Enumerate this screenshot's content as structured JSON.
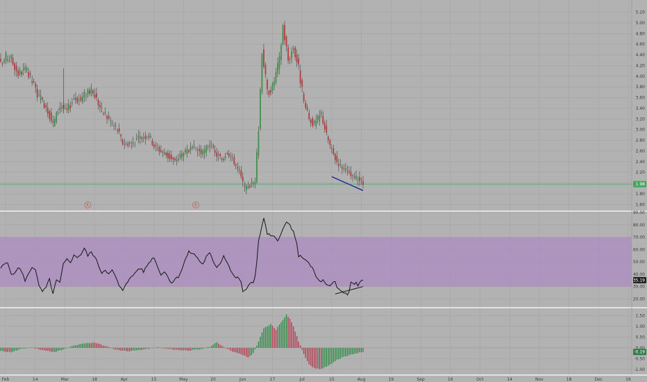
{
  "chart_data": [
    {
      "type": "candlestick",
      "title": "",
      "ylim": [
        1.5,
        5.35
      ],
      "yticks": [
        "5.20",
        "5.00",
        "4.80",
        "4.60",
        "4.40",
        "4.20",
        "4.00",
        "3.80",
        "3.60",
        "3.40",
        "3.20",
        "3.00",
        "2.80",
        "2.60",
        "2.40",
        "2.20",
        "2.00",
        "1.80",
        "1.60"
      ],
      "last_price": 1.98,
      "last_price_label": "1.98",
      "close_anchors": [
        [
          0,
          4.2
        ],
        [
          3,
          4.35
        ],
        [
          6,
          4.32
        ],
        [
          10,
          4.05
        ],
        [
          14,
          4.12
        ],
        [
          18,
          3.9
        ],
        [
          22,
          3.6
        ],
        [
          26,
          3.45
        ],
        [
          30,
          3.1
        ],
        [
          34,
          3.45
        ],
        [
          38,
          3.35
        ],
        [
          42,
          3.6
        ],
        [
          46,
          3.55
        ],
        [
          50,
          3.75
        ],
        [
          54,
          3.65
        ],
        [
          58,
          3.35
        ],
        [
          62,
          3.2
        ],
        [
          67,
          3.0
        ],
        [
          70,
          2.75
        ],
        [
          75,
          2.75
        ],
        [
          80,
          2.85
        ],
        [
          85,
          2.9
        ],
        [
          88,
          2.7
        ],
        [
          92,
          2.6
        ],
        [
          96,
          2.5
        ],
        [
          100,
          2.4
        ],
        [
          104,
          2.55
        ],
        [
          108,
          2.6
        ],
        [
          112,
          2.65
        ],
        [
          116,
          2.55
        ],
        [
          120,
          2.75
        ],
        [
          123,
          2.55
        ],
        [
          127,
          2.45
        ],
        [
          130,
          2.6
        ],
        [
          134,
          2.4
        ],
        [
          137,
          2.2
        ],
        [
          140,
          1.9
        ],
        [
          143,
          1.95
        ],
        [
          146,
          2.05
        ],
        [
          148,
          3.0
        ],
        [
          150,
          4.5
        ],
        [
          153,
          3.7
        ],
        [
          156,
          3.8
        ],
        [
          160,
          4.3
        ],
        [
          162,
          4.95
        ],
        [
          165,
          4.3
        ],
        [
          168,
          4.55
        ],
        [
          171,
          4.15
        ],
        [
          174,
          3.5
        ],
        [
          177,
          3.2
        ],
        [
          180,
          3.1
        ],
        [
          184,
          3.3
        ],
        [
          187,
          2.9
        ],
        [
          190,
          2.6
        ],
        [
          193,
          2.4
        ],
        [
          196,
          2.3
        ],
        [
          199,
          2.2
        ],
        [
          202,
          2.1
        ],
        [
          205,
          2.1
        ],
        [
          208,
          1.98
        ]
      ],
      "earnings_label": "E",
      "earnings_markers_x": [
        50,
        112
      ],
      "trendline": {
        "from": [
          190,
          2.12
        ],
        "to": [
          208,
          1.86
        ]
      }
    },
    {
      "type": "line",
      "title": "",
      "ylim": [
        14,
        90
      ],
      "yticks": [
        "90.00",
        "80.00",
        "70.00",
        "60.00",
        "50.00",
        "40.00",
        "30.00",
        "20.00"
      ],
      "band": [
        30,
        70
      ],
      "last_value": 35.19,
      "last_value_label": "35.19",
      "anchors": [
        [
          0,
          45
        ],
        [
          2,
          48
        ],
        [
          4,
          49
        ],
        [
          6,
          41
        ],
        [
          8,
          40
        ],
        [
          10,
          46
        ],
        [
          12,
          42
        ],
        [
          14,
          35
        ],
        [
          16,
          40
        ],
        [
          18,
          46
        ],
        [
          20,
          44
        ],
        [
          22,
          30
        ],
        [
          24,
          26
        ],
        [
          26,
          29
        ],
        [
          28,
          36
        ],
        [
          30,
          24
        ],
        [
          32,
          35
        ],
        [
          34,
          33
        ],
        [
          36,
          48
        ],
        [
          38,
          52
        ],
        [
          40,
          50
        ],
        [
          42,
          55
        ],
        [
          44,
          54
        ],
        [
          46,
          56
        ],
        [
          48,
          61
        ],
        [
          50,
          55
        ],
        [
          52,
          58
        ],
        [
          54,
          54
        ],
        [
          56,
          48
        ],
        [
          58,
          41
        ],
        [
          60,
          44
        ],
        [
          62,
          40
        ],
        [
          64,
          43
        ],
        [
          66,
          38
        ],
        [
          68,
          30
        ],
        [
          70,
          27
        ],
        [
          72,
          33
        ],
        [
          74,
          36
        ],
        [
          76,
          39
        ],
        [
          78,
          43
        ],
        [
          80,
          45
        ],
        [
          82,
          42
        ],
        [
          84,
          47
        ],
        [
          86,
          51
        ],
        [
          88,
          54
        ],
        [
          90,
          46
        ],
        [
          92,
          40
        ],
        [
          94,
          42
        ],
        [
          96,
          38
        ],
        [
          98,
          33
        ],
        [
          100,
          36
        ],
        [
          102,
          38
        ],
        [
          104,
          44
        ],
        [
          106,
          52
        ],
        [
          108,
          58
        ],
        [
          110,
          57
        ],
        [
          112,
          55
        ],
        [
          114,
          51
        ],
        [
          116,
          48
        ],
        [
          118,
          54
        ],
        [
          120,
          57
        ],
        [
          122,
          50
        ],
        [
          124,
          46
        ],
        [
          126,
          49
        ],
        [
          128,
          55
        ],
        [
          130,
          50
        ],
        [
          132,
          43
        ],
        [
          134,
          38
        ],
        [
          136,
          37
        ],
        [
          138,
          34
        ],
        [
          139,
          26
        ],
        [
          141,
          27
        ],
        [
          143,
          33
        ],
        [
          145,
          34
        ],
        [
          146,
          38
        ],
        [
          147,
          50
        ],
        [
          148,
          66
        ],
        [
          150,
          80
        ],
        [
          151,
          85
        ],
        [
          153,
          73
        ],
        [
          155,
          71
        ],
        [
          157,
          70
        ],
        [
          159,
          67
        ],
        [
          161,
          74
        ],
        [
          163,
          79
        ],
        [
          164,
          82
        ],
        [
          166,
          80
        ],
        [
          168,
          74
        ],
        [
          170,
          64
        ],
        [
          171,
          55
        ],
        [
          173,
          54
        ],
        [
          175,
          52
        ],
        [
          177,
          48
        ],
        [
          179,
          45
        ],
        [
          181,
          38
        ],
        [
          183,
          34
        ],
        [
          185,
          35
        ],
        [
          187,
          31
        ],
        [
          189,
          30
        ],
        [
          191,
          33
        ],
        [
          192,
          34
        ],
        [
          193,
          29
        ],
        [
          195,
          27
        ],
        [
          197,
          25
        ],
        [
          199,
          24
        ],
        [
          200,
          26
        ],
        [
          201,
          33
        ],
        [
          203,
          32
        ],
        [
          204,
          34
        ],
        [
          205,
          30
        ],
        [
          206,
          33
        ],
        [
          207,
          35
        ],
        [
          208,
          35.2
        ]
      ],
      "trendline": {
        "from": [
          192,
          24
        ],
        "to": [
          208,
          30
        ]
      }
    },
    {
      "type": "bar",
      "title": "",
      "ylim": [
        -1.2,
        1.8
      ],
      "yticks": [
        "1.50",
        "1.00",
        "0.50",
        "0.00",
        "-0.50",
        "-1.00"
      ],
      "last_value": -0.19,
      "last_value_label": "-0.19",
      "anchors": [
        [
          0,
          -0.15
        ],
        [
          6,
          -0.2
        ],
        [
          12,
          -0.05
        ],
        [
          18,
          0.02
        ],
        [
          24,
          -0.1
        ],
        [
          30,
          -0.2
        ],
        [
          36,
          -0.08
        ],
        [
          42,
          0.1
        ],
        [
          48,
          0.2
        ],
        [
          54,
          0.25
        ],
        [
          60,
          0.08
        ],
        [
          66,
          -0.08
        ],
        [
          72,
          -0.15
        ],
        [
          78,
          -0.12
        ],
        [
          84,
          -0.05
        ],
        [
          90,
          0.02
        ],
        [
          96,
          -0.05
        ],
        [
          102,
          -0.1
        ],
        [
          108,
          -0.12
        ],
        [
          114,
          -0.08
        ],
        [
          120,
          0.05
        ],
        [
          124,
          0.25
        ],
        [
          128,
          0.05
        ],
        [
          134,
          -0.2
        ],
        [
          138,
          -0.3
        ],
        [
          142,
          -0.45
        ],
        [
          145,
          -0.25
        ],
        [
          148,
          0.3
        ],
        [
          151,
          0.9
        ],
        [
          155,
          1.1
        ],
        [
          158,
          0.85
        ],
        [
          161,
          1.2
        ],
        [
          164,
          1.55
        ],
        [
          166,
          1.35
        ],
        [
          168,
          1.0
        ],
        [
          171,
          0.3
        ],
        [
          174,
          -0.3
        ],
        [
          177,
          -0.75
        ],
        [
          180,
          -0.95
        ],
        [
          184,
          -0.98
        ],
        [
          188,
          -0.85
        ],
        [
          192,
          -0.6
        ],
        [
          196,
          -0.45
        ],
        [
          200,
          -0.35
        ],
        [
          204,
          -0.25
        ],
        [
          208,
          -0.19
        ]
      ]
    }
  ],
  "x_axis": {
    "labels": [
      "Feb",
      "14",
      "Mar",
      "18",
      "Apr",
      "15",
      "May",
      "20",
      "Jun",
      "17",
      "Jul",
      "15",
      "Aug",
      "19",
      "Sep",
      "16",
      "Oct",
      "14",
      "Nov",
      "18",
      "Dec",
      "16"
    ]
  },
  "colors": {
    "background": "#b2b2b2",
    "grid": "#a4a4a4",
    "separator": "#ffffff",
    "up_candle": "#3f8f4a",
    "down_candle": "#b33c3c",
    "wick": "#404040",
    "price_line": "#46a45c",
    "rsi_line": "#151515",
    "rsi_band": "#ab8fc0",
    "trend_blue": "#1c2a8c",
    "trend_black": "#151515",
    "hist_up": "#2f8a45",
    "hist_down": "#b23e4e",
    "hist_tag": "#2e7d4a"
  }
}
